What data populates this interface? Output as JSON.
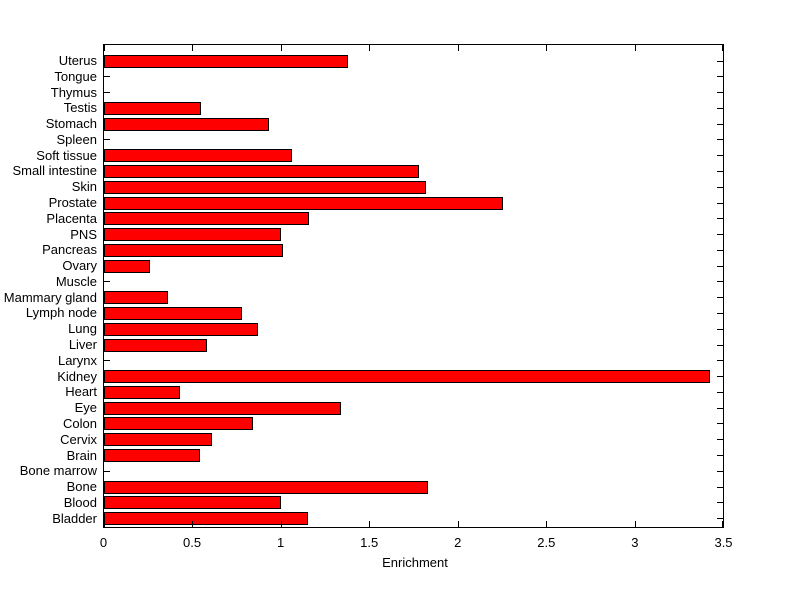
{
  "chart_data": {
    "type": "bar",
    "orientation": "horizontal",
    "title": "",
    "xlabel": "Enrichment",
    "ylabel": "",
    "xlim": [
      0,
      3.5
    ],
    "xticks": [
      0,
      0.5,
      1,
      1.5,
      2,
      2.5,
      3,
      3.5
    ],
    "xtick_labels": [
      "0",
      "0.5",
      "1",
      "1.5",
      "2",
      "2.5",
      "3",
      "3.5"
    ],
    "grid": false,
    "legend": false,
    "categories": [
      "Uterus",
      "Tongue",
      "Thymus",
      "Testis",
      "Stomach",
      "Spleen",
      "Soft tissue",
      "Small intestine",
      "Skin",
      "Prostate",
      "Placenta",
      "PNS",
      "Pancreas",
      "Ovary",
      "Muscle",
      "Mammary gland",
      "Lymph node",
      "Lung",
      "Liver",
      "Larynx",
      "Kidney",
      "Heart",
      "Eye",
      "Colon",
      "Cervix",
      "Brain",
      "Bone marrow",
      "Bone",
      "Blood",
      "Bladder"
    ],
    "values": [
      1.38,
      0,
      0,
      0.55,
      0.93,
      0,
      1.06,
      1.78,
      1.82,
      2.25,
      1.16,
      1.0,
      1.01,
      0.26,
      0,
      0.36,
      0.78,
      0.87,
      0.58,
      0,
      3.42,
      0.43,
      1.34,
      0.84,
      0.61,
      0.54,
      0,
      1.83,
      1.0,
      1.15
    ],
    "bar_color": "#ff0000",
    "bar_edge_color": "#000000",
    "axis_color": "#000000",
    "background_color": "#ffffff"
  }
}
